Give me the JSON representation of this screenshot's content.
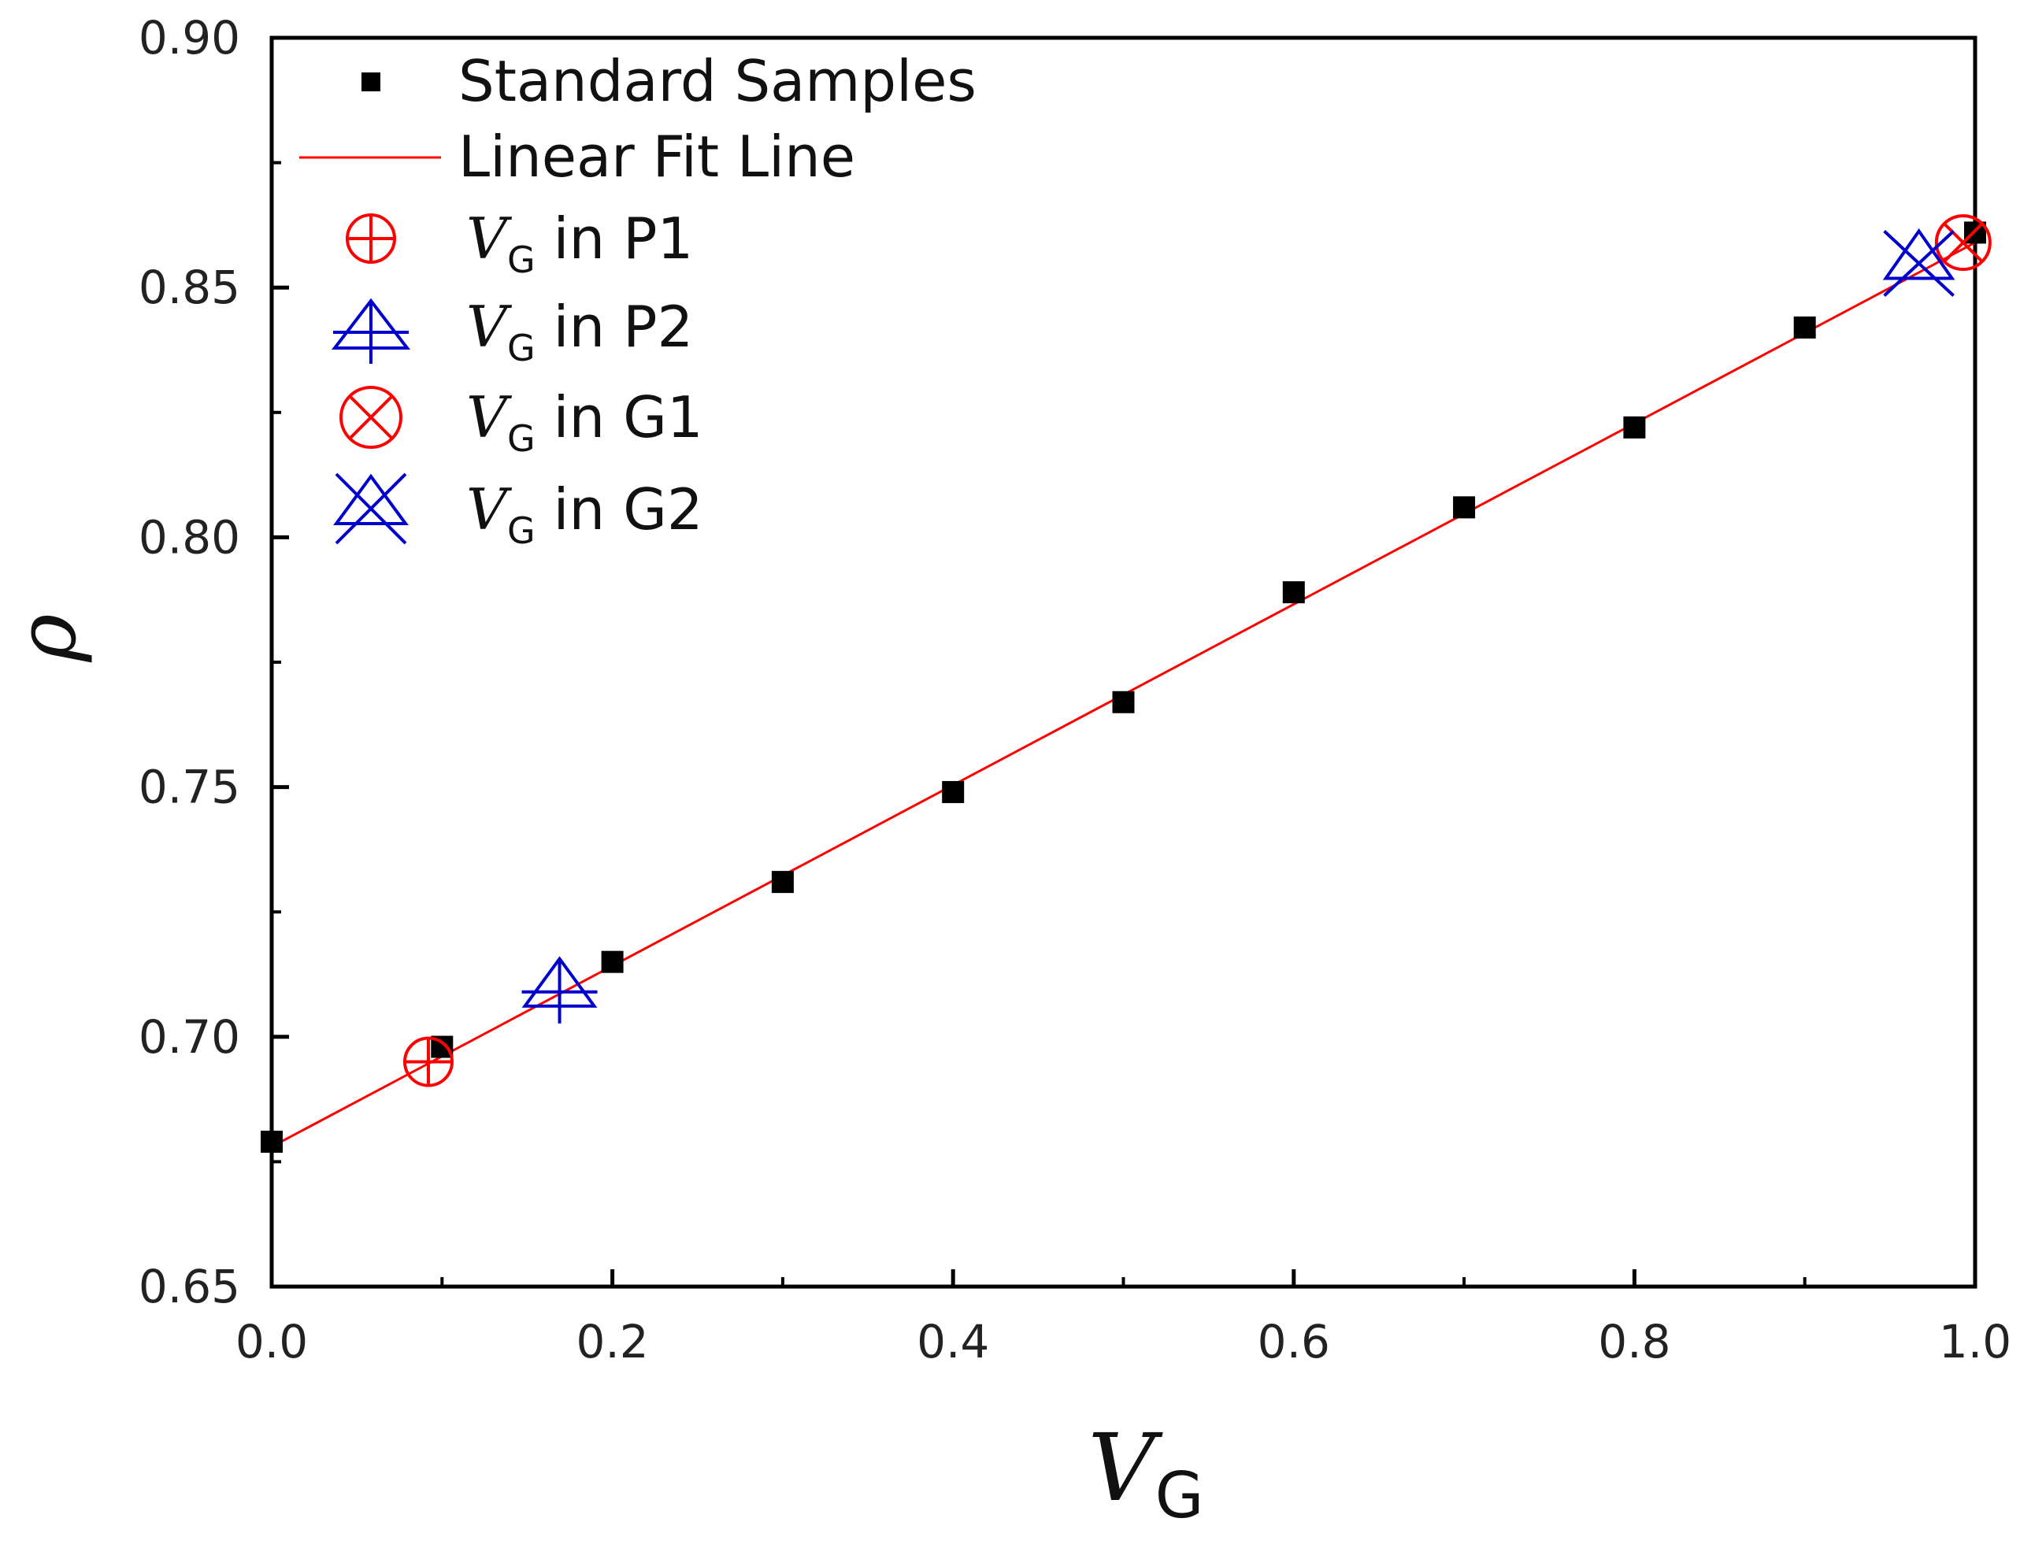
{
  "chart_data": {
    "type": "scatter",
    "title": "",
    "xlabel": {
      "main": "V",
      "sub": "G"
    },
    "ylabel": "ρ",
    "xlim": [
      0.0,
      1.0
    ],
    "ylim": [
      0.65,
      0.9
    ],
    "x_ticks": [
      0.0,
      0.2,
      0.4,
      0.6,
      0.8,
      1.0
    ],
    "x_tick_labels": [
      "0.0",
      "0.2",
      "0.4",
      "0.6",
      "0.8",
      "1.0"
    ],
    "x_minor_ticks": [
      0.1,
      0.3,
      0.5,
      0.7,
      0.9
    ],
    "y_ticks": [
      0.65,
      0.7,
      0.75,
      0.8,
      0.85,
      0.9
    ],
    "y_tick_labels": [
      "0.65",
      "0.70",
      "0.75",
      "0.80",
      "0.85",
      "0.90"
    ],
    "y_minor_ticks": [
      0.675,
      0.725,
      0.775,
      0.825,
      0.875
    ],
    "grid": false,
    "legend_position": "top-left",
    "series": [
      {
        "name": "Standard Samples",
        "kind": "points",
        "marker": "filled-square",
        "color": "#000000",
        "x": [
          0.0,
          0.1,
          0.2,
          0.3,
          0.4,
          0.5,
          0.6,
          0.7,
          0.8,
          0.9,
          1.0
        ],
        "y": [
          0.679,
          0.698,
          0.715,
          0.731,
          0.749,
          0.767,
          0.789,
          0.806,
          0.822,
          0.842,
          0.861
        ]
      },
      {
        "name": "Linear Fit Line",
        "kind": "line",
        "color": "#ff0000",
        "x": [
          0.0,
          1.0
        ],
        "y": [
          0.678,
          0.859
        ]
      },
      {
        "name": "V_G in P1",
        "label_main": "V",
        "label_sub": "G",
        "label_rest": " in P1",
        "kind": "points",
        "marker": "circle-plus",
        "color": "#ff0000",
        "x": [
          0.092
        ],
        "y": [
          0.695
        ]
      },
      {
        "name": "V_G in P2",
        "label_main": "V",
        "label_sub": "G",
        "label_rest": " in P2",
        "kind": "points",
        "marker": "triangle-plus",
        "color": "#0000cc",
        "x": [
          0.169
        ],
        "y": [
          0.709
        ]
      },
      {
        "name": "V_G in G1",
        "label_main": "V",
        "label_sub": "G",
        "label_rest": " in G1",
        "kind": "points",
        "marker": "circle-x",
        "color": "#ff0000",
        "x": [
          0.993
        ],
        "y": [
          0.859
        ]
      },
      {
        "name": "V_G in G2",
        "label_main": "V",
        "label_sub": "G",
        "label_rest": " in G2",
        "kind": "points",
        "marker": "triangle-x",
        "color": "#0000cc",
        "x": [
          0.967
        ],
        "y": [
          0.855
        ]
      }
    ]
  },
  "legend": {
    "standard": "Standard Samples",
    "fit": "Linear Fit Line",
    "p1_main": "V",
    "p1_sub": "G",
    "p1_rest": " in P1",
    "p2_main": "V",
    "p2_sub": "G",
    "p2_rest": " in P2",
    "g1_main": "V",
    "g1_sub": "G",
    "g1_rest": " in G1",
    "g2_main": "V",
    "g2_sub": "G",
    "g2_rest": " in G2"
  }
}
